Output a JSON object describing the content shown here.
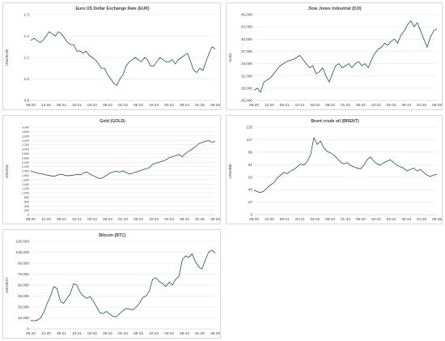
{
  "colors": {
    "series": "#1f4e63",
    "grid": "#e4e4e4",
    "text": "#404040"
  },
  "chart_data": [
    {
      "id": "eur",
      "type": "line",
      "title": "Euro US Dollar Exchange Rate (EUR)",
      "ylabel": "USD/EUR",
      "xlabel": "",
      "grid": true,
      "ylim": [
        0.9,
        1.3
      ],
      "yticks": [
        "0.9",
        "1.0",
        "1.1",
        "1.2",
        "1.3"
      ],
      "yticks_values": [
        0.9,
        1.0,
        1.1,
        1.2,
        1.3
      ],
      "xticks": [
        "08-20",
        "12-20",
        "05-21",
        "10-21",
        "03-22",
        "08-22",
        "01-23",
        "05-23",
        "10-23",
        "03-24",
        "08-24",
        "01-25",
        "06-25"
      ],
      "series": [
        {
          "values": [
            1.18,
            1.19,
            1.18,
            1.17,
            1.18,
            1.2,
            1.22,
            1.21,
            1.2,
            1.22,
            1.21,
            1.19,
            1.17,
            1.16,
            1.16,
            1.13,
            1.13,
            1.12,
            1.13,
            1.11,
            1.1,
            1.09,
            1.07,
            1.05,
            1.05,
            1.02,
            1.0,
            0.98,
            0.97,
            1.0,
            1.02,
            1.06,
            1.08,
            1.09,
            1.1,
            1.09,
            1.08,
            1.1,
            1.09,
            1.06,
            1.06,
            1.08,
            1.1,
            1.09,
            1.08,
            1.08,
            1.09,
            1.07,
            1.09,
            1.1,
            1.11,
            1.12,
            1.08,
            1.04,
            1.03,
            1.05,
            1.04,
            1.08,
            1.12,
            1.15,
            1.14
          ]
        }
      ]
    },
    {
      "id": "dji",
      "type": "line",
      "title": "Dow Jones Industrial (DJI)",
      "ylabel": "Index",
      "xlabel": "",
      "grid": true,
      "ylim": [
        25000,
        46000
      ],
      "yticks": [
        "25,000",
        "28,000",
        "31,000",
        "34,000",
        "37,000",
        "40,000",
        "43,000",
        "46,000"
      ],
      "yticks_values": [
        25000,
        28000,
        31000,
        34000,
        37000,
        40000,
        43000,
        46000
      ],
      "xticks": [
        "08-20",
        "12-20",
        "05-21",
        "10-21",
        "03-22",
        "08-22",
        "01-23",
        "05-23",
        "10-23",
        "03-24",
        "08-24",
        "01-25",
        "06-25"
      ],
      "series": [
        {
          "values": [
            27500,
            28000,
            27000,
            29500,
            30000,
            30500,
            31500,
            32500,
            33500,
            34000,
            34500,
            34800,
            35000,
            35500,
            36000,
            35000,
            34000,
            33000,
            33500,
            31500,
            32000,
            33000,
            31000,
            29500,
            31500,
            33500,
            34000,
            33000,
            33500,
            34000,
            33000,
            34000,
            34500,
            33500,
            34000,
            33000,
            35000,
            36500,
            37500,
            38000,
            39000,
            38500,
            39500,
            40000,
            39000,
            41000,
            42000,
            43500,
            44500,
            43000,
            44000,
            42000,
            40000,
            38000,
            40500,
            42000,
            42500
          ]
        }
      ]
    },
    {
      "id": "gold",
      "type": "line",
      "title": "Gold (GOLD)",
      "ylabel": "USD/Oz.",
      "xlabel": "",
      "grid": true,
      "ylim": [
        0,
        4000
      ],
      "yticks": [
        "0",
        "200",
        "400",
        "600",
        "800",
        "1,000",
        "1,200",
        "1,400",
        "1,600",
        "1,800",
        "2,000",
        "2,200",
        "2,400",
        "2,600",
        "2,800",
        "3,000",
        "3,200",
        "3,400",
        "3,600",
        "3,800",
        "4,000"
      ],
      "yticks_values": [
        0,
        200,
        400,
        600,
        800,
        1000,
        1200,
        1400,
        1600,
        1800,
        2000,
        2200,
        2400,
        2600,
        2800,
        3000,
        3200,
        3400,
        3600,
        3800,
        4000
      ],
      "xticks": [
        "08-20",
        "12-20",
        "05-21",
        "10-21",
        "03-22",
        "08-22",
        "01-23",
        "05-23",
        "10-23",
        "03-24",
        "08-24",
        "01-25",
        "06-25"
      ],
      "series": [
        {
          "values": [
            2000,
            1950,
            1900,
            1880,
            1850,
            1800,
            1780,
            1750,
            1800,
            1850,
            1820,
            1780,
            1790,
            1800,
            1850,
            1820,
            1900,
            1950,
            1850,
            1780,
            1700,
            1650,
            1700,
            1800,
            1900,
            1950,
            1980,
            1950,
            2000,
            1920,
            1850,
            1900,
            1950,
            2000,
            2050,
            2100,
            2150,
            2300,
            2350,
            2400,
            2450,
            2500,
            2600,
            2650,
            2700,
            2750,
            2650,
            2800,
            2900,
            3000,
            3100,
            3250,
            3300,
            3350,
            3400,
            3300,
            3350
          ]
        }
      ]
    },
    {
      "id": "brent",
      "type": "line",
      "title": "Brent crude oil (BRENT)",
      "ylabel": "USD/Bbl.",
      "xlabel": "",
      "grid": true,
      "ylim": [
        9,
        135
      ],
      "yticks": [
        "9",
        "27",
        "45",
        "63",
        "81",
        "99",
        "117",
        "135"
      ],
      "yticks_values": [
        9,
        27,
        45,
        63,
        81,
        99,
        117,
        135
      ],
      "xticks": [
        "08-20",
        "12-20",
        "05-21",
        "10-21",
        "03-22",
        "08-22",
        "01-23",
        "05-23",
        "10-23",
        "03-24",
        "08-24",
        "01-25",
        "06-25"
      ],
      "series": [
        {
          "values": [
            44,
            42,
            41,
            43,
            48,
            52,
            55,
            62,
            66,
            70,
            68,
            72,
            74,
            78,
            82,
            80,
            86,
            95,
            120,
            110,
            115,
            105,
            100,
            98,
            95,
            90,
            85,
            82,
            84,
            80,
            78,
            76,
            75,
            80,
            88,
            92,
            86,
            82,
            80,
            84,
            86,
            88,
            84,
            80,
            78,
            76,
            72,
            74,
            76,
            72,
            74,
            70,
            66,
            64,
            66,
            67
          ]
        }
      ]
    },
    {
      "id": "btc",
      "type": "line",
      "title": "Bitcoin (BTC)",
      "ylabel": "USD/BTC",
      "xlabel": "",
      "grid": true,
      "ylim": [
        0,
        120000
      ],
      "yticks": [
        "0",
        "15,000",
        "30,000",
        "45,000",
        "60,000",
        "75,000",
        "90,000",
        "105,000",
        "120,000"
      ],
      "yticks_values": [
        0,
        15000,
        30000,
        45000,
        60000,
        75000,
        90000,
        105000,
        120000
      ],
      "xticks": [
        "08-20",
        "12-20",
        "05-21",
        "10-21",
        "03-22",
        "08-22",
        "01-23",
        "05-23",
        "10-23",
        "03-24",
        "08-24",
        "01-25",
        "06-25"
      ],
      "series": [
        {
          "values": [
            11500,
            11000,
            12000,
            15000,
            23000,
            35000,
            45000,
            58000,
            55000,
            38000,
            35000,
            42000,
            48000,
            62000,
            60000,
            50000,
            45000,
            42000,
            44000,
            38000,
            30000,
            22000,
            21000,
            24000,
            20000,
            17000,
            16500,
            21000,
            25000,
            28000,
            27000,
            26000,
            30000,
            35000,
            43000,
            45000,
            52000,
            68000,
            70000,
            65000,
            62000,
            58000,
            64000,
            60000,
            68000,
            72000,
            95000,
            100000,
            98000,
            103000,
            92000,
            85000,
            82000,
            95000,
            105000,
            108000,
            104000
          ]
        }
      ]
    }
  ]
}
